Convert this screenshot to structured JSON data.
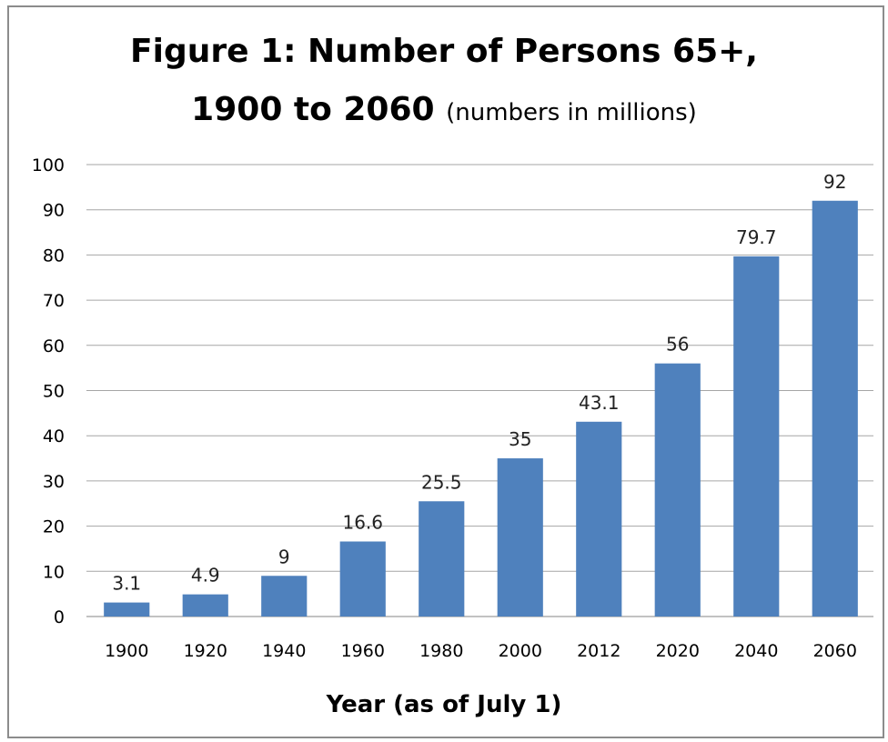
{
  "chart_data": {
    "type": "bar",
    "title_line1": "Figure 1:  Number of Persons 65+,",
    "title_line2": "1900 to 2060",
    "subtitle": "(numbers in millions)",
    "xlabel": "Year (as of July 1)",
    "ylabel": "",
    "categories": [
      "1900",
      "1920",
      "1940",
      "1960",
      "1980",
      "2000",
      "2012",
      "2020",
      "2040",
      "2060"
    ],
    "values": [
      3.1,
      4.9,
      9,
      16.6,
      25.5,
      35,
      43.1,
      56,
      79.7,
      92
    ],
    "data_labels": [
      "3.1",
      "4.9",
      "9",
      "16.6",
      "25.5",
      "35",
      "43.1",
      "56",
      "79.7",
      "92"
    ],
    "ylim": [
      0,
      100
    ],
    "yticks": [
      0,
      10,
      20,
      30,
      40,
      50,
      60,
      70,
      80,
      90,
      100
    ],
    "grid": true,
    "legend": "none",
    "bar_color": "#4f81bd"
  }
}
